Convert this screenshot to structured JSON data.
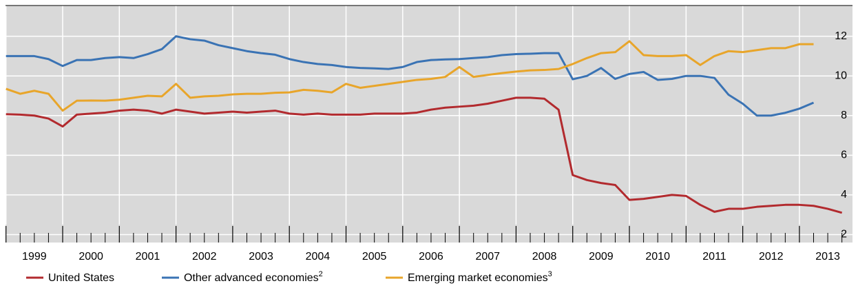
{
  "chart_data": {
    "type": "line",
    "x": [
      1999.0,
      1999.25,
      1999.5,
      1999.75,
      2000.0,
      2000.25,
      2000.5,
      2000.75,
      2001.0,
      2001.25,
      2001.5,
      2001.75,
      2002.0,
      2002.25,
      2002.5,
      2002.75,
      2003.0,
      2003.25,
      2003.5,
      2003.75,
      2004.0,
      2004.25,
      2004.5,
      2004.75,
      2005.0,
      2005.25,
      2005.5,
      2005.75,
      2006.0,
      2006.25,
      2006.5,
      2006.75,
      2007.0,
      2007.25,
      2007.5,
      2007.75,
      2008.0,
      2008.25,
      2008.5,
      2008.75,
      2009.0,
      2009.25,
      2009.5,
      2009.75,
      2010.0,
      2010.25,
      2010.5,
      2010.75,
      2011.0,
      2011.25,
      2011.5,
      2011.75,
      2012.0,
      2012.25,
      2012.5,
      2012.75,
      2013.0,
      2013.25,
      2013.5,
      2013.75
    ],
    "series": [
      {
        "name": "United States",
        "color": "#b22a2e",
        "values": [
          8.07,
          8.05,
          8.0,
          7.85,
          7.45,
          8.05,
          8.1,
          8.15,
          8.25,
          8.3,
          8.25,
          8.1,
          8.3,
          8.2,
          8.1,
          8.15,
          8.2,
          8.15,
          8.2,
          8.25,
          8.1,
          8.05,
          8.1,
          8.05,
          8.05,
          8.05,
          8.1,
          8.1,
          8.1,
          8.15,
          8.3,
          8.4,
          8.45,
          8.5,
          8.6,
          8.75,
          8.9,
          8.9,
          8.85,
          8.3,
          5.0,
          4.75,
          4.6,
          4.5,
          3.75,
          3.8,
          3.9,
          4.0,
          3.95,
          3.5,
          3.15,
          3.3,
          3.3,
          3.4,
          3.45,
          3.5,
          3.5,
          3.45,
          3.3,
          3.1
        ]
      },
      {
        "name": "Other advanced economies",
        "superscript": "2",
        "color": "#3a73b4",
        "values": [
          11.0,
          11.0,
          11.0,
          10.85,
          10.5,
          10.8,
          10.8,
          10.9,
          10.95,
          10.9,
          11.1,
          11.35,
          12.0,
          11.85,
          11.78,
          11.55,
          11.4,
          11.25,
          11.15,
          11.07,
          10.85,
          10.7,
          10.6,
          10.55,
          10.45,
          10.4,
          10.38,
          10.35,
          10.45,
          10.7,
          10.8,
          10.83,
          10.85,
          10.9,
          10.95,
          11.05,
          11.1,
          11.12,
          11.15,
          11.15,
          9.83,
          10.0,
          10.4,
          9.85,
          10.1,
          10.2,
          9.8,
          9.85,
          10.0,
          10.0,
          9.9,
          9.05,
          8.6,
          8.0,
          8.0,
          8.14,
          8.35,
          8.65,
          null,
          null
        ]
      },
      {
        "name": "Emerging market economies",
        "superscript": "3",
        "color": "#e8a52a",
        "values": [
          9.35,
          9.1,
          9.25,
          9.1,
          8.25,
          8.75,
          8.76,
          8.75,
          8.8,
          8.9,
          9.0,
          8.97,
          9.6,
          8.9,
          8.97,
          9.0,
          9.07,
          9.1,
          9.1,
          9.15,
          9.17,
          9.3,
          9.25,
          9.17,
          9.6,
          9.4,
          9.5,
          9.6,
          9.7,
          9.8,
          9.85,
          9.95,
          10.45,
          9.95,
          10.05,
          10.14,
          10.22,
          10.28,
          10.3,
          10.35,
          10.6,
          10.9,
          11.15,
          11.2,
          11.75,
          11.05,
          11.0,
          11.0,
          11.05,
          10.55,
          11.0,
          11.25,
          11.2,
          11.3,
          11.4,
          11.4,
          11.6,
          11.6,
          null,
          null
        ]
      }
    ],
    "xlim": [
      1999,
      2013.9
    ],
    "xticks": [
      {
        "value": 1999.5,
        "label": "1999"
      },
      {
        "value": 2000.5,
        "label": "2000"
      },
      {
        "value": 2001.5,
        "label": "2001"
      },
      {
        "value": 2002.5,
        "label": "2002"
      },
      {
        "value": 2003.5,
        "label": "2003"
      },
      {
        "value": 2004.5,
        "label": "2004"
      },
      {
        "value": 2005.5,
        "label": "2005"
      },
      {
        "value": 2006.5,
        "label": "2006"
      },
      {
        "value": 2007.5,
        "label": "2007"
      },
      {
        "value": 2008.5,
        "label": "2008"
      },
      {
        "value": 2009.5,
        "label": "2009"
      },
      {
        "value": 2010.5,
        "label": "2010"
      },
      {
        "value": 2011.5,
        "label": "2011"
      },
      {
        "value": 2012.5,
        "label": "2012"
      },
      {
        "value": 2013.5,
        "label": "2013"
      }
    ],
    "ylim": [
      1.6,
      13.55
    ],
    "yticks": [
      2,
      4,
      6,
      8,
      10,
      12
    ],
    "grid": true,
    "legend": "bottom"
  }
}
